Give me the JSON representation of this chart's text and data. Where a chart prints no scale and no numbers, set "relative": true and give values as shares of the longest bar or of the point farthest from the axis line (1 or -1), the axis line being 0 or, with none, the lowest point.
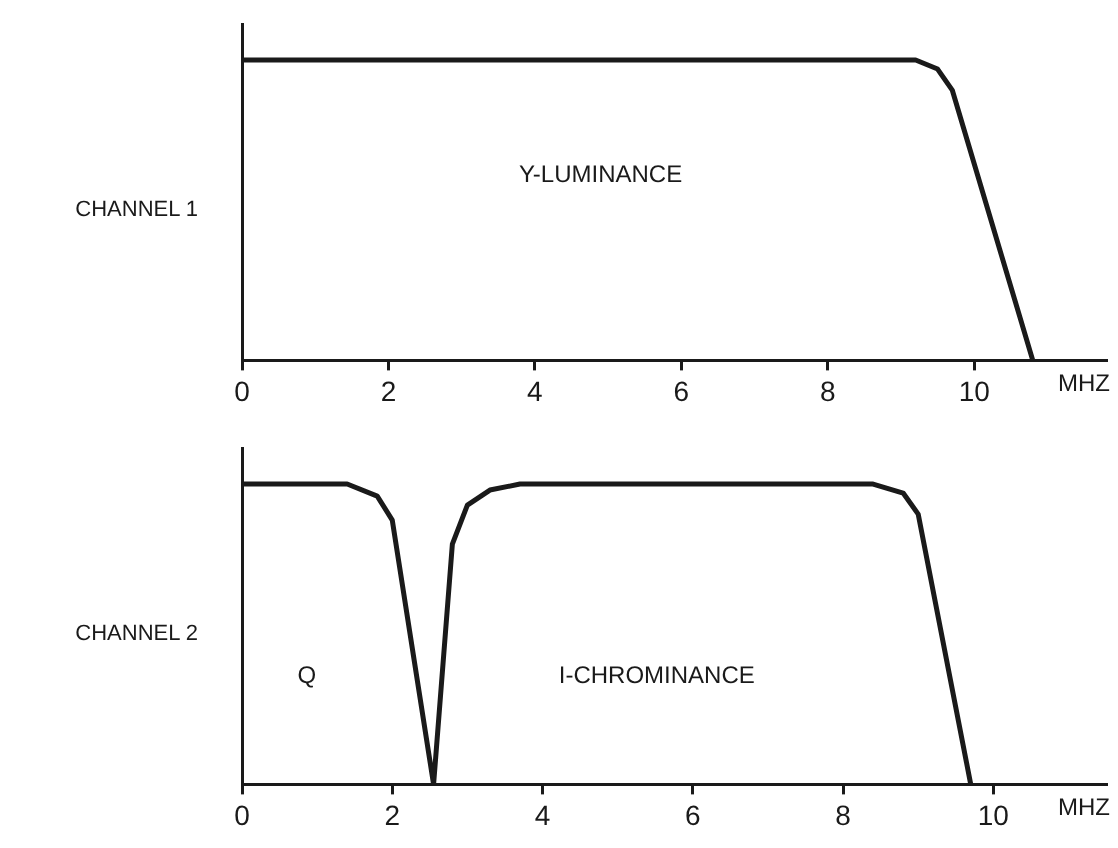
{
  "chart_data": [
    {
      "type": "line",
      "ylabel": "CHANNEL 1",
      "xlabel": "MHZ",
      "relative": true,
      "xlim": [
        0,
        11.8
      ],
      "xticks": [
        0,
        2,
        4,
        6,
        8,
        10
      ],
      "marker": "none",
      "line_style": "solid",
      "series": [
        {
          "color": "#1a1a1a",
          "x": [
            0,
            9.2,
            9.5,
            9.7,
            10.8
          ],
          "values": [
            1,
            1,
            0.97,
            0.9,
            0
          ]
        }
      ],
      "annotations": [
        "Y-LUMINANCE"
      ]
    },
    {
      "type": "line",
      "ylabel": "CHANNEL 2",
      "xlabel": "MHZ",
      "relative": true,
      "xlim": [
        0,
        11.5
      ],
      "xticks": [
        0,
        2,
        4,
        6,
        8,
        10
      ],
      "marker": "none",
      "line_style": "solid",
      "series": [
        {
          "color": "#1a1a1a",
          "x": [
            0,
            1.4,
            1.8,
            2.0,
            2.55,
            2.8,
            3.0,
            3.3,
            3.7,
            8.4,
            8.8,
            9.0,
            9.7
          ],
          "values": [
            1,
            1,
            0.96,
            0.88,
            0,
            0.8,
            0.93,
            0.98,
            1,
            1,
            0.97,
            0.9,
            0
          ]
        }
      ],
      "annotations": [
        "Q",
        "I-CHROMINANCE"
      ]
    }
  ]
}
